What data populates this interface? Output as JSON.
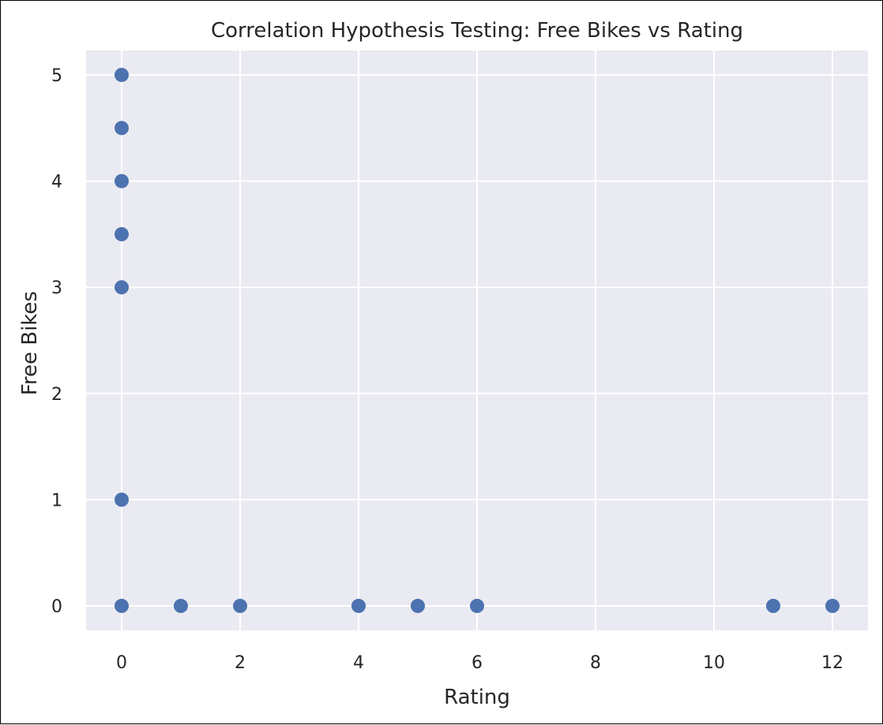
{
  "chart_data": {
    "type": "scatter",
    "title": "Correlation Hypothesis Testing: Free Bikes vs Rating",
    "xlabel": "Rating",
    "ylabel": "Free Bikes",
    "xlim": [
      -0.6,
      12.6
    ],
    "ylim": [
      -0.23,
      5.23
    ],
    "xticks": [
      0,
      2,
      4,
      6,
      8,
      10,
      12
    ],
    "yticks": [
      0,
      1,
      2,
      3,
      4,
      5
    ],
    "grid": true,
    "colors": {
      "background": "#eaeaf2",
      "grid": "#ffffff",
      "point": "#4c72b0"
    },
    "points": [
      {
        "x": 0,
        "y": 5
      },
      {
        "x": 0,
        "y": 4.5
      },
      {
        "x": 0,
        "y": 4
      },
      {
        "x": 0,
        "y": 3.5
      },
      {
        "x": 0,
        "y": 3
      },
      {
        "x": 0,
        "y": 1
      },
      {
        "x": 0,
        "y": 0
      },
      {
        "x": 1,
        "y": 0
      },
      {
        "x": 2,
        "y": 0
      },
      {
        "x": 4,
        "y": 0
      },
      {
        "x": 5,
        "y": 0
      },
      {
        "x": 6,
        "y": 0
      },
      {
        "x": 11,
        "y": 0
      },
      {
        "x": 12,
        "y": 0
      }
    ]
  }
}
